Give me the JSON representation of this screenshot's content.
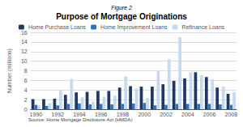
{
  "chart_data": {
    "type": "bar",
    "title": "Purpose of Mortgage Originations",
    "subtitle": "Source: Home Mortgage Disclosure Act (HMDA)",
    "annotations": [
      "Figure 2"
    ],
    "y_label": "Number (millions)",
    "categories": [
      "1990",
      null,
      "1992",
      null,
      "1994",
      null,
      "1996",
      null,
      "1998",
      null,
      "2000",
      null,
      "2002",
      null,
      "2004",
      null,
      "2006",
      null,
      "2008"
    ],
    "series": [
      {
        "name": "Home Purchase Loans",
        "color": "#1f3864",
        "values": [
          2.1,
          2.1,
          2.2,
          3.0,
          3.5,
          3.6,
          3.8,
          3.8,
          4.5,
          4.8,
          4.7,
          4.7,
          5.2,
          5.9,
          6.4,
          7.7,
          6.7,
          4.5,
          3.2
        ]
      },
      {
        "name": "Home Improvement Loans",
        "color": "#2e75b6",
        "values": [
          0.9,
          0.7,
          0.8,
          1.1,
          1.2,
          1.0,
          1.1,
          1.0,
          1.1,
          1.2,
          1.3,
          0.8,
          0.9,
          1.1,
          1.1,
          1.1,
          1.1,
          1.0,
          0.9
        ]
      },
      {
        "name": "Refinance Loans",
        "color": "#c5d9f1",
        "values": [
          0.8,
          1.3,
          4.0,
          6.3,
          2.5,
          1.6,
          2.6,
          2.8,
          6.8,
          4.3,
          2.3,
          7.9,
          10.4,
          15.0,
          7.7,
          7.1,
          6.2,
          4.7,
          3.5
        ]
      }
    ],
    "ylim": [
      0,
      16
    ],
    "yticks": [
      0,
      2,
      4,
      6,
      8,
      10,
      12,
      14,
      16
    ],
    "grid": true,
    "legend": "top"
  }
}
